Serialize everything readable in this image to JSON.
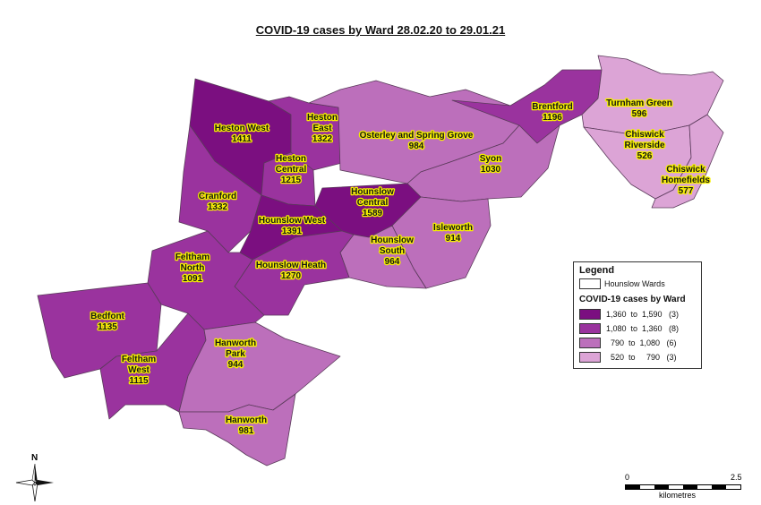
{
  "title": "COVID-19 cases by Ward 28.02.20 to 29.01.21",
  "colors": {
    "class1": "#7b0f80",
    "class2": "#9a339e",
    "class3": "#bc6fbb",
    "class4": "#dca4d6"
  },
  "wards": [
    {
      "id": "heston-west",
      "name": "Heston West",
      "cases": "1411"
    },
    {
      "id": "heston-east",
      "name": "Heston East",
      "cases": "1322"
    },
    {
      "id": "heston-central",
      "name": "Heston Central",
      "cases": "1215"
    },
    {
      "id": "osterley",
      "name": "Osterley and Spring Grove",
      "cases": "984"
    },
    {
      "id": "brentford",
      "name": "Brentford",
      "cases": "1196"
    },
    {
      "id": "turnham-green",
      "name": "Turnham Green",
      "cases": "596"
    },
    {
      "id": "chiswick-riverside",
      "name": "Chiswick Riverside",
      "cases": "526"
    },
    {
      "id": "chiswick-homefields",
      "name": "Chiswick Homefields",
      "cases": "577"
    },
    {
      "id": "syon",
      "name": "Syon",
      "cases": "1030"
    },
    {
      "id": "cranford",
      "name": "Cranford",
      "cases": "1332"
    },
    {
      "id": "hounslow-west",
      "name": "Hounslow West",
      "cases": "1391"
    },
    {
      "id": "hounslow-central",
      "name": "Hounslow Central",
      "cases": "1589"
    },
    {
      "id": "isleworth",
      "name": "Isleworth",
      "cases": "914"
    },
    {
      "id": "hounslow-south",
      "name": "Hounslow South",
      "cases": "964"
    },
    {
      "id": "hounslow-heath",
      "name": "Hounslow Heath",
      "cases": "1270"
    },
    {
      "id": "feltham-north",
      "name": "Feltham North",
      "cases": "1091"
    },
    {
      "id": "bedfont",
      "name": "Bedfont",
      "cases": "1135"
    },
    {
      "id": "feltham-west",
      "name": "Feltham West",
      "cases": "1115"
    },
    {
      "id": "hanworth-park",
      "name": "Hanworth Park",
      "cases": "944"
    },
    {
      "id": "hanworth",
      "name": "Hanworth",
      "cases": "981"
    }
  ],
  "labels": {
    "heston-west": [
      "Heston West",
      "1411"
    ],
    "heston-east": [
      "Heston",
      "East",
      "1322"
    ],
    "heston-central": [
      "Heston",
      "Central",
      "1215"
    ],
    "osterley": [
      "Osterley and Spring Grove",
      "984"
    ],
    "brentford": [
      "Brentford",
      "1196"
    ],
    "turnham-green": [
      "Turnham Green",
      "596"
    ],
    "chiswick-riverside": [
      "Chiswick",
      "Riverside",
      "526"
    ],
    "chiswick-homefields": [
      "Chiswick",
      "Homefields",
      "577"
    ],
    "syon": [
      "Syon",
      "1030"
    ],
    "cranford": [
      "Cranford",
      "1332"
    ],
    "hounslow-west": [
      "Hounslow West",
      "1391"
    ],
    "hounslow-central": [
      "Hounslow",
      "Central",
      "1589"
    ],
    "isleworth": [
      "Isleworth",
      "914"
    ],
    "hounslow-south": [
      "Hounslow",
      "South",
      "964"
    ],
    "hounslow-heath": [
      "Hounslow Heath",
      "1270"
    ],
    "feltham-north": [
      "Feltham",
      "North",
      "1091"
    ],
    "bedfont": [
      "Bedfont",
      "1135"
    ],
    "feltham-west": [
      "Feltham",
      "West",
      "1115"
    ],
    "hanworth-park": [
      "Hanworth",
      "Park",
      "944"
    ],
    "hanworth": [
      "Hanworth",
      "981"
    ]
  },
  "legend": {
    "heading": "Legend",
    "boundary_label": "Hounslow Wards",
    "title": "COVID-19 cases by Ward",
    "classes": [
      {
        "range": "1,360  to  1,590   (3)",
        "color": "#7b0f80"
      },
      {
        "range": "1,080  to  1,360   (8)",
        "color": "#9a339e"
      },
      {
        "range": "  790  to  1,080   (6)",
        "color": "#bc6fbb"
      },
      {
        "range": "  520  to     790   (3)",
        "color": "#dca4d6"
      }
    ]
  },
  "north_letter": "N",
  "scale": {
    "start": "0",
    "end": "2.5",
    "unit": "kilometres"
  }
}
